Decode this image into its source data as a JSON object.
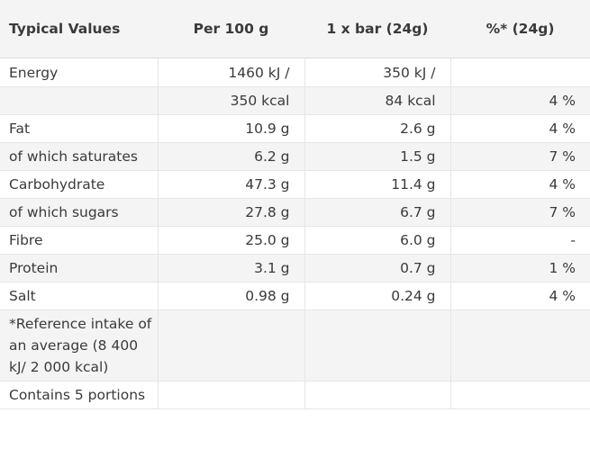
{
  "headers": [
    "Typical Values",
    "Per 100 g",
    "1 x bar (24g)",
    "%* (24g)"
  ],
  "rows": [
    {
      "label": "Energy",
      "per100": "1460 kJ /",
      "perbar": "350 kJ /",
      "pct": ""
    },
    {
      "label": "",
      "per100": "350 kcal",
      "perbar": "84 kcal",
      "pct": "4 %"
    },
    {
      "label": "Fat",
      "per100": "10.9 g",
      "perbar": "2.6 g",
      "pct": "4 %"
    },
    {
      "label": "of which saturates",
      "per100": "6.2 g",
      "perbar": "1.5 g",
      "pct": "7 %"
    },
    {
      "label": "Carbohydrate",
      "per100": "47.3 g",
      "perbar": "11.4 g",
      "pct": "4 %"
    },
    {
      "label": "of which sugars",
      "per100": "27.8 g",
      "perbar": "6.7 g",
      "pct": "7 %"
    },
    {
      "label": "Fibre",
      "per100": "25.0 g",
      "perbar": "6.0 g",
      "pct": "-"
    },
    {
      "label": "Protein",
      "per100": "3.1 g",
      "perbar": "0.7 g",
      "pct": "1 %"
    },
    {
      "label": "Salt",
      "per100": "0.98 g",
      "perbar": "0.24 g",
      "pct": "4 %"
    },
    {
      "label": "*Reference intake of an average (8 400 kJ/ 2 000 kcal)",
      "per100": "",
      "perbar": "",
      "pct": ""
    },
    {
      "label": "Contains 5 portions",
      "per100": "",
      "perbar": "",
      "pct": ""
    }
  ]
}
